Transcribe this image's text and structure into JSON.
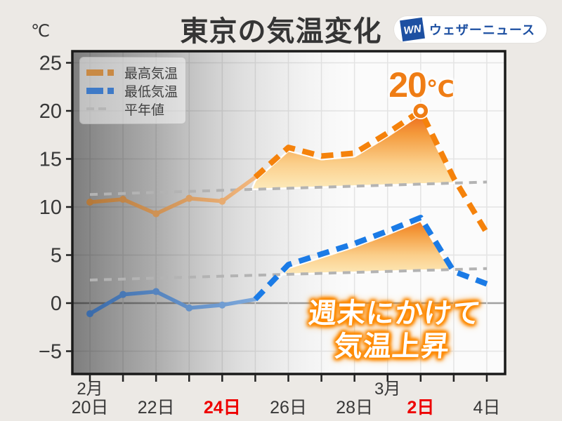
{
  "title": "東京の気温変化",
  "unit_label": "℃",
  "logo": {
    "badge": "WN",
    "text": "ウェザーニュース"
  },
  "legend": {
    "items": [
      {
        "label": "最高気温",
        "style": "dashed",
        "color": "#c98a45"
      },
      {
        "label": "最低気温",
        "style": "dashed",
        "color": "#3f7ac7"
      },
      {
        "label": "平年値",
        "style": "thin",
        "color": "#b5b5b5"
      }
    ]
  },
  "annotations": {
    "peak_value": "20",
    "peak_unit": "℃",
    "callout_line1": "週末にかけて",
    "callout_line2": "気温上昇"
  },
  "colors": {
    "background": "#ece9e5",
    "plot_background": "#fbfbfb",
    "grid": "#e4e4e4",
    "zero_line": "#a0a0a0",
    "border": "#1a1a1a",
    "tick_label": "#383838",
    "red_label": "#ee0000",
    "forecast_orange": "#f5820b",
    "forecast_blue": "#1b7be6",
    "normal_gray": "#b3b3b3",
    "annotation_orange": "#ef7d15",
    "logo_blue": "#1d50a2"
  },
  "chart_data": {
    "type": "line",
    "title": "東京の気温変化",
    "y_unit": "℃",
    "ylim": [
      -7.3,
      26.2
    ],
    "grid": true,
    "y_ticks": [
      {
        "v": 25,
        "label": "25"
      },
      {
        "v": 20,
        "label": "20"
      },
      {
        "v": 15,
        "label": "15"
      },
      {
        "v": 10,
        "label": "10"
      },
      {
        "v": 5,
        "label": "5"
      },
      {
        "v": 0,
        "label": "0"
      },
      {
        "v": -5,
        "label": "−5"
      }
    ],
    "x_days": 13,
    "x_ticks": [
      {
        "i": 0,
        "label": "20日",
        "month": "2月",
        "red": false
      },
      {
        "i": 2,
        "label": "22日",
        "red": false
      },
      {
        "i": 4,
        "label": "24日",
        "red": true
      },
      {
        "i": 6,
        "label": "26日",
        "red": false
      },
      {
        "i": 8,
        "label": "28日",
        "red": false
      },
      {
        "i": 9,
        "label": "",
        "month": "3月",
        "red": false
      },
      {
        "i": 10,
        "label": "2日",
        "red": true
      },
      {
        "i": 12,
        "label": "4日",
        "red": false
      }
    ],
    "series": [
      {
        "name": "最高気温(観測)",
        "kind": "observed",
        "x": [
          0,
          1,
          2,
          3,
          4,
          5
        ],
        "values": [
          10.5,
          10.8,
          9.3,
          10.9,
          10.6,
          13.1
        ],
        "color_from": "#b5793a",
        "color_to": "#f3b77e",
        "marker_days": [
          0,
          1,
          2,
          3,
          4
        ]
      },
      {
        "name": "最高気温(予想)",
        "kind": "forecast",
        "x": [
          5,
          6,
          7,
          8,
          9,
          10,
          11,
          12
        ],
        "values": [
          13.1,
          16.2,
          15.3,
          15.6,
          17.7,
          20,
          13,
          7.3
        ],
        "color": "#f5820b"
      },
      {
        "name": "最低気温(観測)",
        "kind": "observed",
        "x": [
          0,
          1,
          2,
          3,
          4,
          5
        ],
        "values": [
          -1.1,
          0.9,
          1.2,
          -0.5,
          -0.2,
          0.4
        ],
        "color_from": "#3b6cab",
        "color_to": "#7ea9dc",
        "marker_days": [
          0,
          1,
          2,
          3,
          4
        ]
      },
      {
        "name": "最低気温(予想)",
        "kind": "forecast",
        "x": [
          5,
          6,
          7,
          8,
          9,
          10,
          11,
          12
        ],
        "values": [
          0.4,
          4.0,
          5.1,
          6.2,
          7.5,
          8.9,
          3.3,
          2.0
        ],
        "color": "#1b7be6"
      },
      {
        "name": "平年値(最高)",
        "kind": "normal",
        "x": [
          0,
          12
        ],
        "values": [
          11.3,
          12.6
        ],
        "color": "#b3b3b3"
      },
      {
        "name": "平年値(最低)",
        "kind": "normal",
        "x": [
          0,
          12
        ],
        "values": [
          2.4,
          3.6
        ],
        "color": "#b3b3b3"
      }
    ],
    "peak_marker": {
      "day": 10,
      "value": 20
    },
    "fills": [
      {
        "upper": 1,
        "lower": 4,
        "taper_start": 4.85
      },
      {
        "upper": 3,
        "lower": 5
      }
    ],
    "legend_position": "upper-left",
    "past_shading": "dark gradient over observed period (left side)"
  }
}
